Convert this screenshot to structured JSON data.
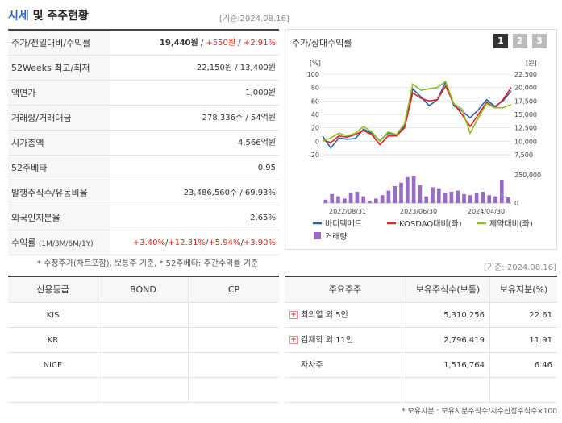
{
  "header": {
    "title_accent": "시세",
    "title_rest": " 및 주주현황",
    "base_date": "[기준:2024.08.16]"
  },
  "quote": {
    "rows": [
      {
        "label": "주가/전일대비/수익률",
        "price": "19,440원",
        "sep1": " / ",
        "change": "+550원",
        "sep2": " / ",
        "pct": "+2.91%"
      },
      {
        "label": "52Weeks 최고/최저",
        "value": "22,150원 / 13,400원"
      },
      {
        "label": "액면가",
        "value": "1,000원"
      },
      {
        "label": "거래량/거래대금",
        "value": "278,336주 / 54억원"
      },
      {
        "label": "시가총액",
        "value": "4,566억원"
      },
      {
        "label": "52주베타",
        "value": "0.95"
      },
      {
        "label": "발행주식수/유동비율",
        "value": "23,486,560주 / 69.93%"
      },
      {
        "label": "외국인지분율",
        "value": "2.65%"
      },
      {
        "label": "수익률",
        "label_small": "(1M/3M/6M/1Y)",
        "r1": "+3.40%",
        "r2": "+12.31%",
        "r3": "+5.94%",
        "r4": "+3.90%"
      }
    ],
    "note": "* 수정주가(차트포함), 보통주 기준, * 52주베타: 주간수익률 기준"
  },
  "chart_panel": {
    "title": "주가/상대수익률",
    "pages": [
      "1",
      "2",
      "3"
    ],
    "active_page": "1"
  },
  "chart_data": {
    "type": "line",
    "left_axis_label": "[%]",
    "right_axis_label": "[원]",
    "left_ticks": [
      100,
      80,
      60,
      40,
      20,
      0,
      -20
    ],
    "left_ylim": [
      -20,
      100
    ],
    "right_ticks": [
      "22,500",
      "20,000",
      "17,500",
      "15,000",
      "12,500",
      "10,000",
      "7,500"
    ],
    "right_ylim": [
      7500,
      22500
    ],
    "volume_ticks": [
      "250,000",
      "0"
    ],
    "volume_ylim": [
      0,
      250000
    ],
    "x_tick_labels": [
      "2022/08/31",
      "2023/06/30",
      "2024/04/30"
    ],
    "series": [
      {
        "name": "바디텍메드",
        "color": "#2a5db0",
        "values": [
          8,
          -10,
          5,
          3,
          4,
          18,
          12,
          1,
          12,
          10,
          22,
          78,
          66,
          53,
          62,
          88,
          53,
          45,
          35,
          47,
          62,
          52,
          60,
          75
        ]
      },
      {
        "name": "KOSDAQ대비(좌)",
        "color": "#e2231a",
        "values": [
          2,
          -2,
          8,
          6,
          10,
          16,
          10,
          -5,
          8,
          8,
          20,
          72,
          64,
          60,
          62,
          82,
          56,
          40,
          22,
          40,
          58,
          50,
          62,
          80
        ]
      },
      {
        "name": "제약대비(좌)",
        "color": "#8cbf26",
        "values": [
          0,
          5,
          12,
          8,
          12,
          22,
          14,
          0,
          14,
          10,
          26,
          85,
          76,
          78,
          80,
          89,
          56,
          48,
          12,
          35,
          56,
          50,
          50,
          55
        ]
      }
    ],
    "volume": {
      "name": "거래량",
      "color": "#9a6bc6",
      "values": [
        30000,
        80000,
        60000,
        40000,
        90000,
        100000,
        60000,
        20000,
        40000,
        70000,
        110000,
        150000,
        180000,
        230000,
        240000,
        160000,
        60000,
        140000,
        130000,
        90000,
        100000,
        110000,
        80000,
        70000,
        90000,
        100000,
        70000,
        60000,
        200000,
        50000
      ]
    }
  },
  "base_date2": "[기준: 2024.08.16]",
  "rating": {
    "headers": [
      "신용등급",
      "BOND",
      "CP"
    ],
    "rows": [
      {
        "agency": "KIS",
        "bond": "",
        "cp": ""
      },
      {
        "agency": "KR",
        "bond": "",
        "cp": ""
      },
      {
        "agency": "NICE",
        "bond": "",
        "cp": ""
      },
      {
        "agency": "",
        "bond": "",
        "cp": ""
      }
    ]
  },
  "holders": {
    "headers": [
      "주요주주",
      "보유주식수(보통)",
      "보유지분(%)"
    ],
    "rows": [
      {
        "name": "최의열 외 5인",
        "shares": "5,310,256",
        "pct": "22.61",
        "expand": "+"
      },
      {
        "name": "김재학 외 11인",
        "shares": "2,796,419",
        "pct": "11.91",
        "expand": "+"
      },
      {
        "name": "자사주",
        "shares": "1,516,764",
        "pct": "6.46",
        "expand": ""
      },
      {
        "name": "",
        "shares": "",
        "pct": "",
        "expand": ""
      }
    ]
  },
  "footer_note": "* 보유지분 : 보유지분주식수/지수산정주식수×100"
}
